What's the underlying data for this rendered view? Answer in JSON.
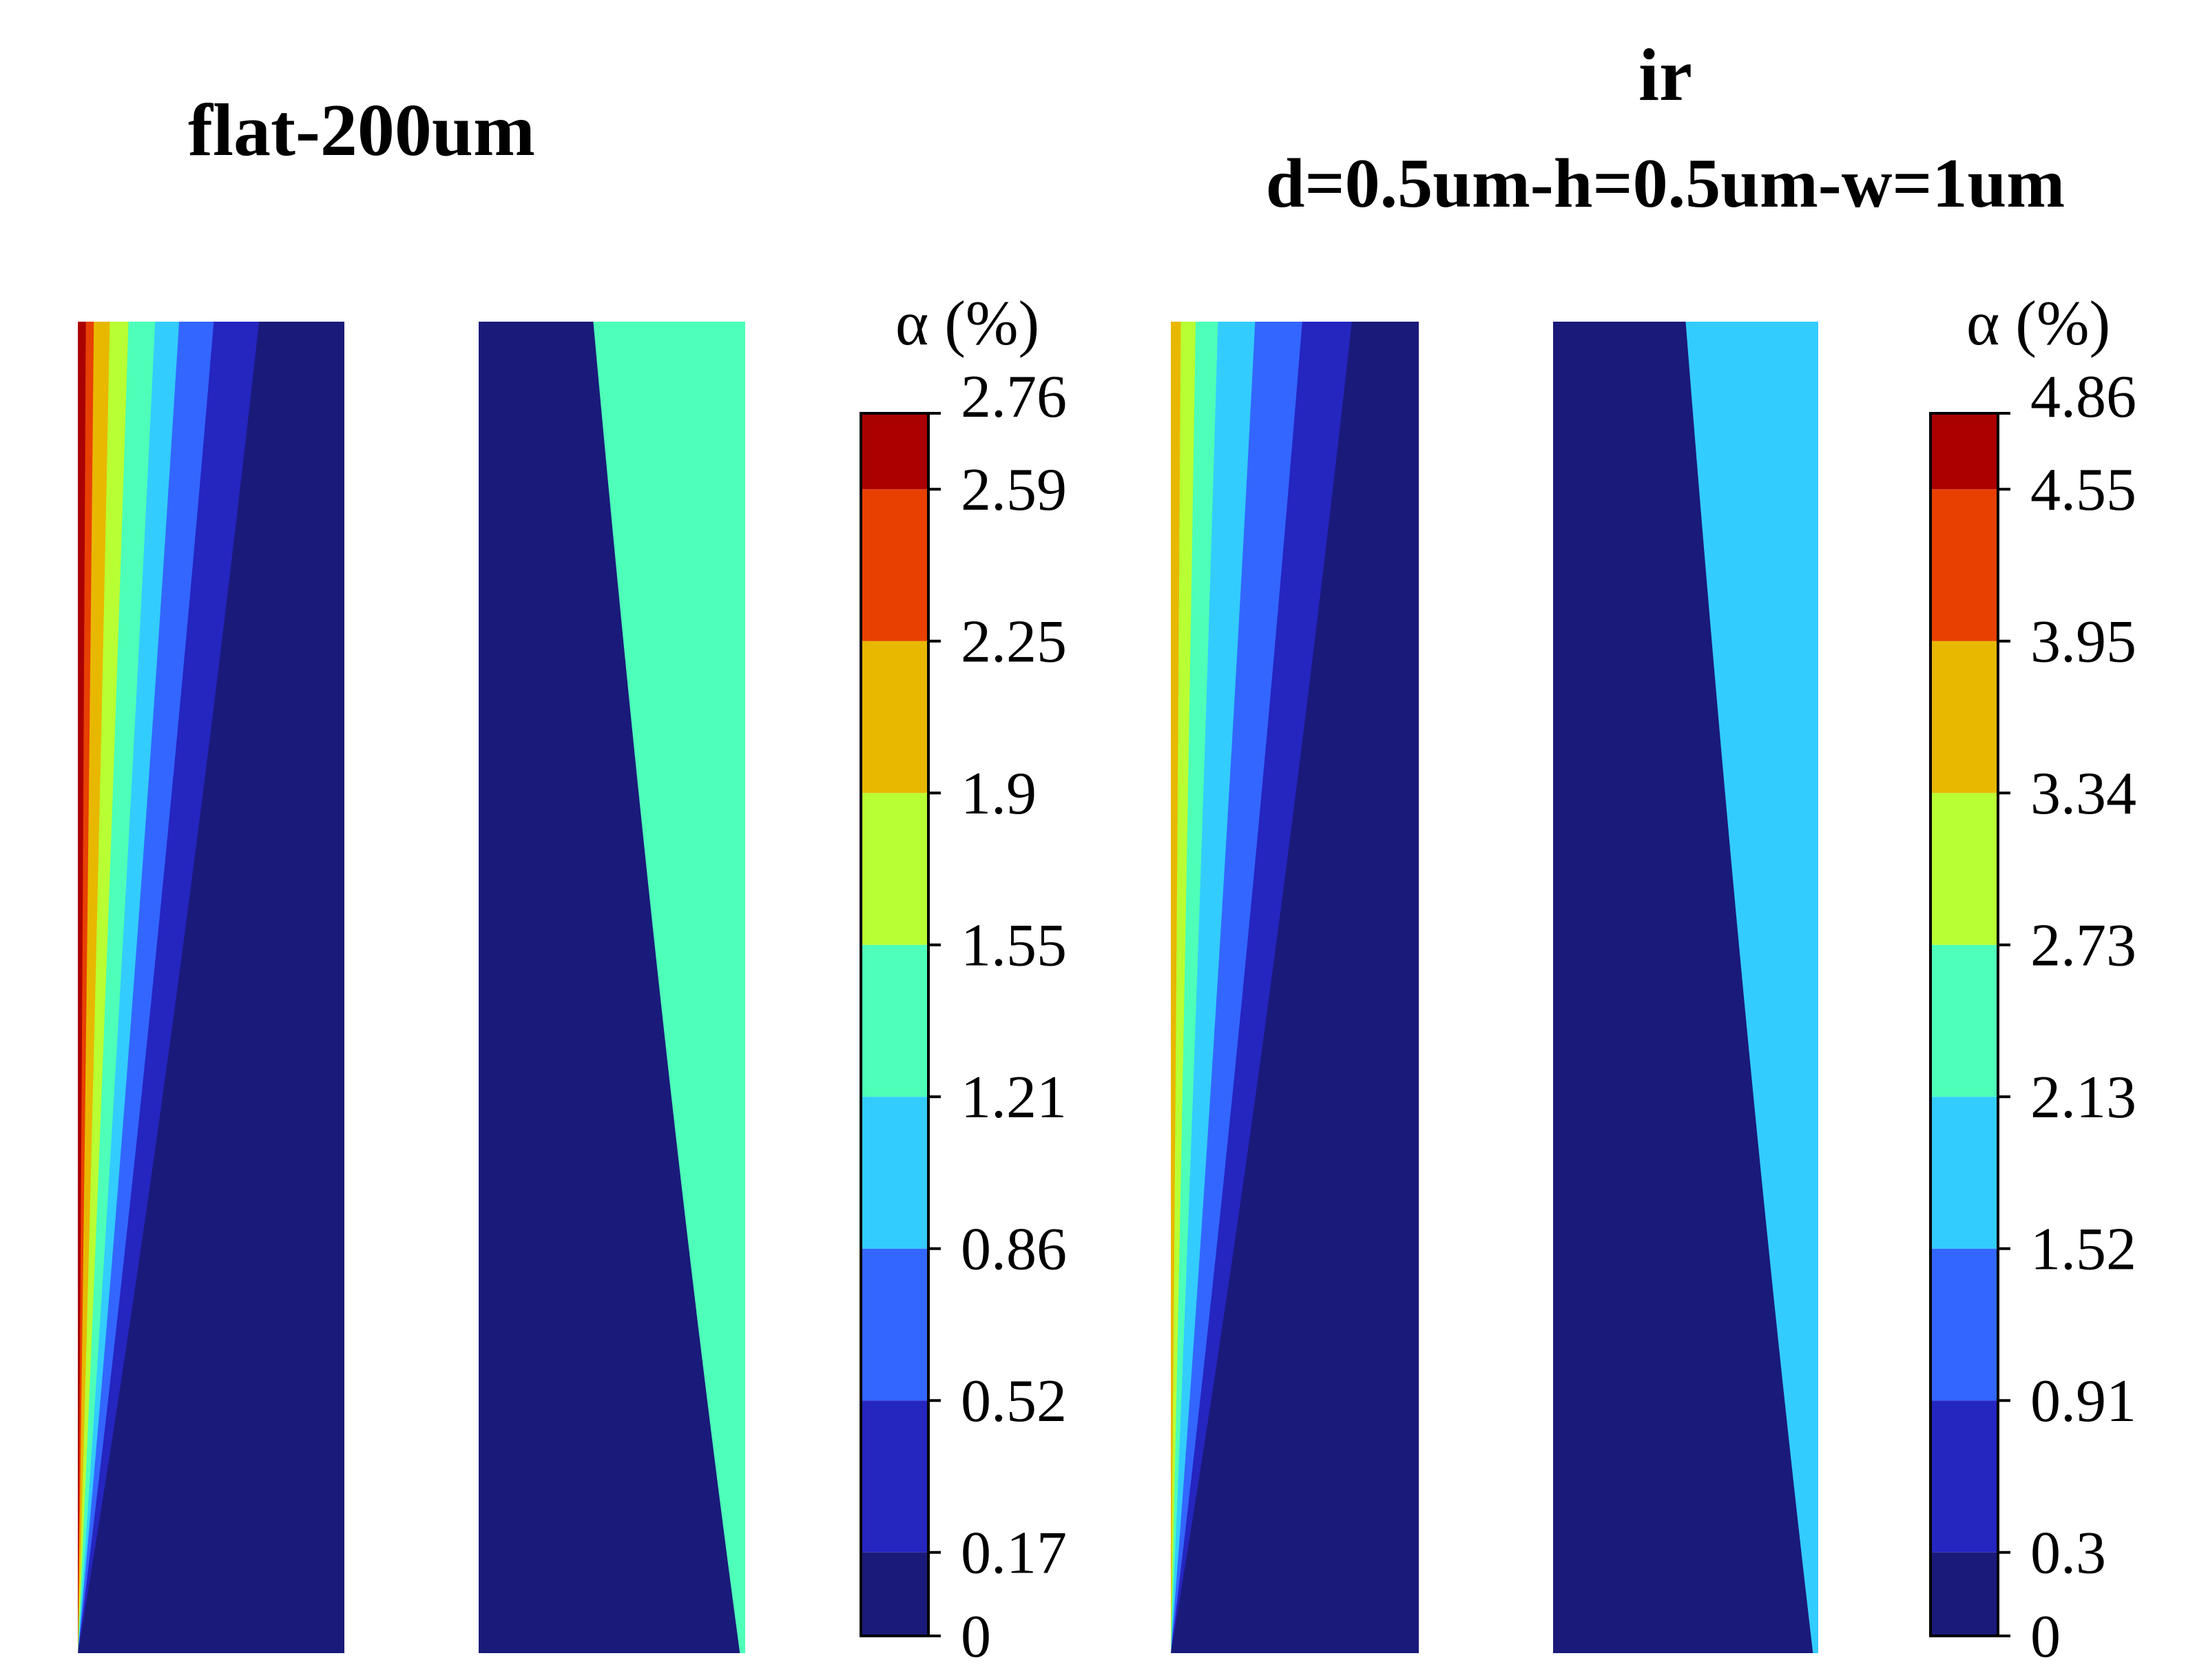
{
  "chart_data": [
    {
      "type": "heatmap",
      "title": "flat-200um",
      "colorbar": {
        "label": "α (%)",
        "levels": [
          "0",
          "0.17",
          "0.52",
          "0.86",
          "1.21",
          "1.55",
          "1.9",
          "2.25",
          "2.59",
          "2.76"
        ],
        "colors": [
          "#1a1a7a",
          "#2525c0",
          "#3366ff",
          "#33ccff",
          "#4dffb8",
          "#b8ff33",
          "#e8b800",
          "#e84000",
          "#aa0000"
        ]
      },
      "panels": [
        {
          "name": "left",
          "high_value_side": "left",
          "max_band": 8,
          "band_x_at_top": [
            0.03,
            0.06,
            0.12,
            0.19,
            0.29,
            0.38,
            0.51,
            0.68
          ],
          "bottom_band_x": 0.0
        },
        {
          "name": "right",
          "high_value_side": "right",
          "max_band": 4,
          "band_x_at_top": [
            0.43,
            0.82,
            0.97
          ],
          "bottom_band_x": 0.98
        }
      ]
    },
    {
      "type": "heatmap",
      "title": "ir",
      "subtitle": "d=0.5um-h=0.5um-w=1um",
      "colorbar": {
        "label": "α (%)",
        "levels": [
          "0",
          "0.3",
          "0.91",
          "1.52",
          "2.13",
          "2.73",
          "3.34",
          "3.95",
          "4.55",
          "4.86"
        ],
        "colors": [
          "#1a1a7a",
          "#2525c0",
          "#3366ff",
          "#33ccff",
          "#4dffb8",
          "#b8ff33",
          "#e8b800",
          "#e84000",
          "#aa0000"
        ]
      },
      "panels": [
        {
          "name": "left",
          "high_value_side": "left",
          "max_band": 6,
          "band_x_at_top": [
            0.04,
            0.1,
            0.19,
            0.34,
            0.53,
            0.73
          ],
          "bottom_band_x": 0.0
        },
        {
          "name": "right",
          "high_value_side": "right",
          "max_band": 3,
          "band_x_at_top": [
            0.5,
            0.76,
            0.9
          ],
          "bottom_band_x": 0.98
        }
      ]
    }
  ]
}
